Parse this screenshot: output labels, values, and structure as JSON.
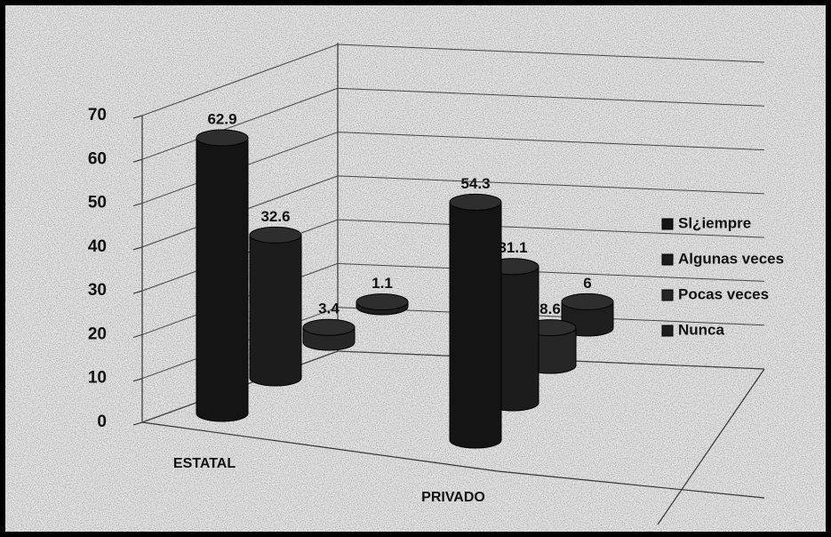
{
  "chart_data": {
    "type": "bar3d",
    "categories": [
      "ESTATAL",
      "PRIVADO"
    ],
    "series": [
      {
        "name": "Sl¿iempre",
        "color": "#141414",
        "values": [
          62.9,
          54.3
        ]
      },
      {
        "name": "Algunas veces",
        "color": "#1c1c1c",
        "values": [
          32.6,
          31.1
        ]
      },
      {
        "name": "Pocas veces",
        "color": "#262626",
        "values": [
          3.4,
          8.6
        ]
      },
      {
        "name": "Nunca",
        "color": "#1e1e1e",
        "values": [
          1.1,
          6
        ]
      }
    ],
    "ylim": [
      0,
      70
    ],
    "yticks": [
      0,
      10,
      20,
      30,
      40,
      50,
      60,
      70
    ],
    "grid": true,
    "legend": "right"
  }
}
